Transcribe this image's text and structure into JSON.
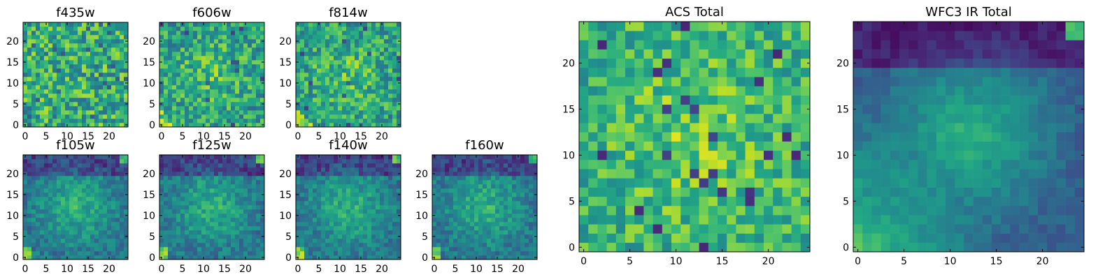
{
  "chart_data": [
    {
      "type": "heatmap",
      "title": "f435w",
      "x_ticks": [
        "0",
        "5",
        "10",
        "15",
        "20"
      ],
      "y_ticks": [
        "0",
        "5",
        "10",
        "15",
        "20"
      ],
      "xlim": [
        -0.5,
        24.5
      ],
      "ylim": [
        -0.5,
        24.5
      ],
      "grid_size": [
        25,
        25
      ],
      "colormap": "viridis",
      "spatial_pattern": "noise",
      "pixel_values": "randomized"
    },
    {
      "type": "heatmap",
      "title": "f606w",
      "x_ticks": [
        "0",
        "5",
        "10",
        "15",
        "20"
      ],
      "y_ticks": [
        "0",
        "5",
        "10",
        "15",
        "20"
      ],
      "xlim": [
        -0.5,
        24.5
      ],
      "ylim": [
        -0.5,
        24.5
      ],
      "grid_size": [
        25,
        25
      ],
      "colormap": "viridis",
      "spatial_pattern": "noise-center",
      "pixel_values": "randomized"
    },
    {
      "type": "heatmap",
      "title": "f814w",
      "x_ticks": [
        "0",
        "5",
        "10",
        "15",
        "20"
      ],
      "y_ticks": [
        "0",
        "5",
        "10",
        "15",
        "20"
      ],
      "xlim": [
        -0.5,
        24.5
      ],
      "ylim": [
        -0.5,
        24.5
      ],
      "grid_size": [
        25,
        25
      ],
      "colormap": "viridis",
      "spatial_pattern": "noise-center",
      "pixel_values": "randomized"
    },
    {
      "type": "heatmap",
      "title": "f105w",
      "x_ticks": [
        "0",
        "5",
        "10",
        "15",
        "20"
      ],
      "y_ticks": [
        "0",
        "5",
        "10",
        "15",
        "20"
      ],
      "xlim": [
        -0.5,
        24.5
      ],
      "ylim": [
        -0.5,
        24.5
      ],
      "grid_size": [
        25,
        25
      ],
      "colormap": "viridis",
      "spatial_pattern": "ir",
      "pixel_values": "randomized"
    },
    {
      "type": "heatmap",
      "title": "f125w",
      "x_ticks": [
        "0",
        "5",
        "10",
        "15",
        "20"
      ],
      "y_ticks": [
        "0",
        "5",
        "10",
        "15",
        "20"
      ],
      "xlim": [
        -0.5,
        24.5
      ],
      "ylim": [
        -0.5,
        24.5
      ],
      "grid_size": [
        25,
        25
      ],
      "colormap": "viridis",
      "spatial_pattern": "ir",
      "pixel_values": "randomized"
    },
    {
      "type": "heatmap",
      "title": "f140w",
      "x_ticks": [
        "0",
        "5",
        "10",
        "15",
        "20"
      ],
      "y_ticks": [
        "0",
        "5",
        "10",
        "15",
        "20"
      ],
      "xlim": [
        -0.5,
        24.5
      ],
      "ylim": [
        -0.5,
        24.5
      ],
      "grid_size": [
        25,
        25
      ],
      "colormap": "viridis",
      "spatial_pattern": "ir",
      "pixel_values": "randomized"
    },
    {
      "type": "heatmap",
      "title": "f160w",
      "x_ticks": [
        "0",
        "5",
        "10",
        "15",
        "20"
      ],
      "y_ticks": [
        "0",
        "5",
        "10",
        "15",
        "20"
      ],
      "xlim": [
        -0.5,
        24.5
      ],
      "ylim": [
        -0.5,
        24.5
      ],
      "grid_size": [
        25,
        25
      ],
      "colormap": "viridis",
      "spatial_pattern": "ir",
      "pixel_values": "randomized"
    },
    {
      "type": "heatmap",
      "title": "ACS Total",
      "x_ticks": [
        "0",
        "5",
        "10",
        "15",
        "20"
      ],
      "y_ticks": [
        "0",
        "5",
        "10",
        "15",
        "20"
      ],
      "xlim": [
        -0.5,
        24.5
      ],
      "ylim": [
        -0.5,
        24.5
      ],
      "grid_size": [
        25,
        25
      ],
      "colormap": "viridis",
      "spatial_pattern": "acs-total",
      "pixel_values": "randomized"
    },
    {
      "type": "heatmap",
      "title": "WFC3 IR Total",
      "x_ticks": [
        "0",
        "5",
        "10",
        "15",
        "20"
      ],
      "y_ticks": [
        "0",
        "5",
        "10",
        "15",
        "20"
      ],
      "xlim": [
        -0.5,
        24.5
      ],
      "ylim": [
        -0.5,
        24.5
      ],
      "grid_size": [
        25,
        25
      ],
      "colormap": "viridis",
      "spatial_pattern": "ir-total",
      "pixel_values": "randomized"
    }
  ],
  "colors": {
    "viridis_low": "#440154",
    "viridis_mid": "#21908d",
    "viridis_high": "#fde725"
  }
}
